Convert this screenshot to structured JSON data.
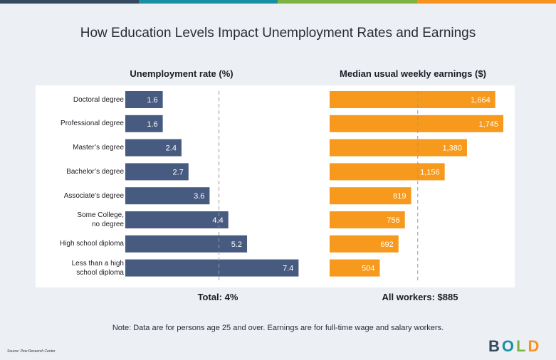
{
  "title": "How Education Levels Impact Unemployment Rates and Earnings",
  "colors": {
    "stripe": [
      "#34495e",
      "#1b8fa3",
      "#7cb342",
      "#f7931e"
    ],
    "unemployment_bar": "#475a80",
    "earnings_bar": "#f7991c"
  },
  "chart_data": [
    {
      "type": "bar",
      "title": "Unemployment rate (%)",
      "categories": [
        "Doctoral degree",
        "Professional degree",
        "Master's degree",
        "Bachelor's degree",
        "Associate's degree",
        "Some College, no degree",
        "High school diploma",
        "Less than a high school diploma"
      ],
      "values": [
        1.6,
        1.6,
        2.4,
        2.7,
        3.6,
        4.4,
        5.2,
        7.4
      ],
      "value_labels": [
        "1.6",
        "1.6",
        "2.4",
        "2.7",
        "3.6",
        "4.4",
        "5.2",
        "7.4"
      ],
      "reference_line": 4,
      "reference_label": "Total: 4%",
      "xlim": [
        0,
        8.3
      ],
      "orientation": "horizontal"
    },
    {
      "type": "bar",
      "title": "Median usual weekly earnings ($)",
      "categories": [
        "Doctoral degree",
        "Professional degree",
        "Master's degree",
        "Bachelor's degree",
        "Associate's degree",
        "Some College, no degree",
        "High school diploma",
        "Less than a high school diploma"
      ],
      "values": [
        1664,
        1745,
        1380,
        1156,
        819,
        756,
        692,
        504
      ],
      "value_labels": [
        "1,664",
        "1,745",
        "1,380",
        "1,156",
        "819",
        "756",
        "692",
        "504"
      ],
      "reference_line": 885,
      "reference_label": "All workers: $885",
      "xlim": [
        0,
        1895
      ],
      "orientation": "horizontal"
    }
  ],
  "category_display": [
    [
      "Doctoral degree"
    ],
    [
      "Professional degree"
    ],
    [
      "Master’s degree"
    ],
    [
      "Bachelor’s degree"
    ],
    [
      "Associate’s degree"
    ],
    [
      "Some College,",
      "no degree"
    ],
    [
      "High school diploma"
    ],
    [
      "Less than a high",
      "school diploma"
    ]
  ],
  "note": "Note: Data are for persons age 25 and over. Earnings are for full-time wage and salary workers.",
  "source": "Source: Pew Research Center",
  "logo": {
    "letters": [
      "B",
      "O",
      "L",
      "D"
    ],
    "colors": [
      "#34495e",
      "#1b8fa3",
      "#7cb342",
      "#f7931e"
    ]
  }
}
